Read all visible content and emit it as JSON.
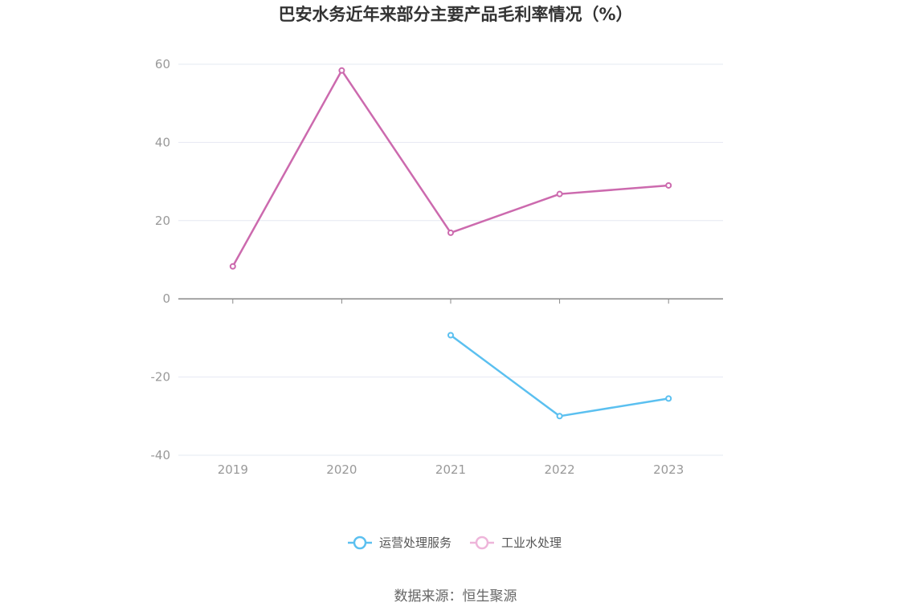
{
  "chart_data": {
    "type": "line",
    "title": "巴安水务近年来部分主要产品毛利率情况（%）",
    "categories": [
      "2019",
      "2020",
      "2021",
      "2022",
      "2023"
    ],
    "y_ticks": [
      "60",
      "40",
      "20",
      "0",
      "-20",
      "-40"
    ],
    "ylim": [
      -40,
      60
    ],
    "grid": true,
    "legend_position": "bottom",
    "series": [
      {
        "name": "运营处理服务",
        "color": "#5bc0f0",
        "values": [
          null,
          null,
          -9.3,
          -30.0,
          -25.5
        ]
      },
      {
        "name": "工业水处理",
        "color": "#cc6aae",
        "legend_color": "#eeb5da",
        "values": [
          8.3,
          58.4,
          16.9,
          26.8,
          29.0
        ]
      }
    ]
  },
  "source": "数据来源：恒生聚源"
}
